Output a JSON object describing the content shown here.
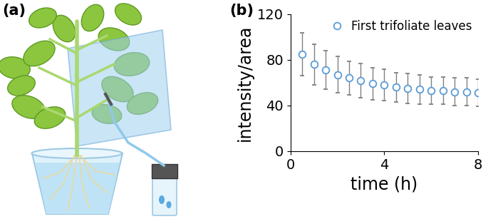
{
  "panel_labels": [
    "(a)",
    "(b)"
  ],
  "chart_data": {
    "type": "scatter",
    "x_label": "time (h)",
    "y_label": "intensity/area",
    "x": [
      0.5,
      1,
      1.5,
      2,
      2.5,
      3,
      3.5,
      4,
      4.5,
      5,
      5.5,
      6,
      6.5,
      7,
      7.5,
      8
    ],
    "series": [
      {
        "name": "First trifoliate leaves",
        "color": "#5b9bd5",
        "marker": "o",
        "values": [
          85,
          76,
          71,
          67,
          64,
          62,
          59,
          58,
          56,
          55,
          54,
          53,
          53,
          52,
          52,
          51
        ],
        "errors": [
          19,
          18,
          17,
          16,
          15,
          15,
          14,
          14,
          13,
          13,
          13,
          12,
          12,
          12,
          12,
          12
        ]
      }
    ],
    "xlim": [
      0,
      8
    ],
    "xticks": [
      0,
      4,
      8
    ],
    "ylim": [
      0,
      120
    ],
    "yticks": [
      0,
      40,
      80,
      120
    ],
    "grid": false,
    "legend": "upper right"
  }
}
